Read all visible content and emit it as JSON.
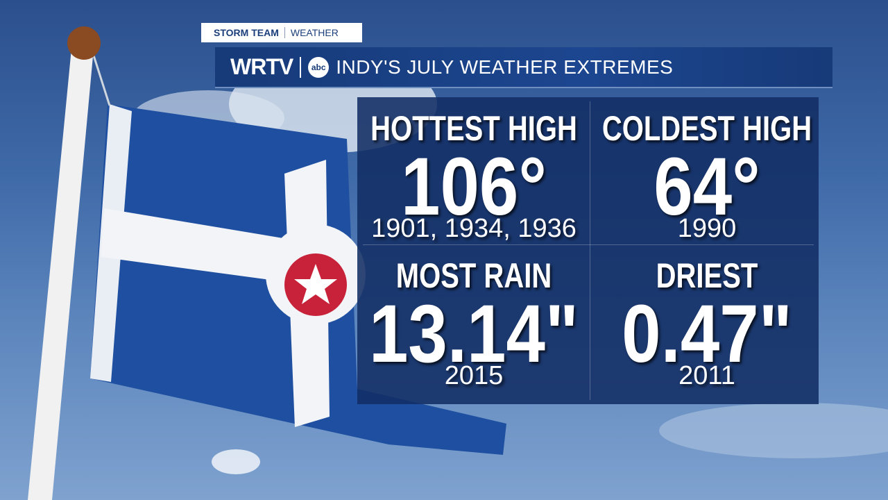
{
  "header": {
    "team": "STORM TEAM",
    "section": "WEATHER",
    "station": "WRTV",
    "network": "abc",
    "title": "INDY'S JULY WEATHER EXTREMES"
  },
  "stats": [
    {
      "label": "HOTTEST HIGH",
      "value": "106°",
      "years": "1901, 1934, 1936"
    },
    {
      "label": "COLDEST HIGH",
      "value": "64°",
      "years": "1990"
    },
    {
      "label": "MOST RAIN",
      "value": "13.14\"",
      "years": "2015"
    },
    {
      "label": "DRIEST",
      "value": "0.47\"",
      "years": "2011"
    }
  ]
}
